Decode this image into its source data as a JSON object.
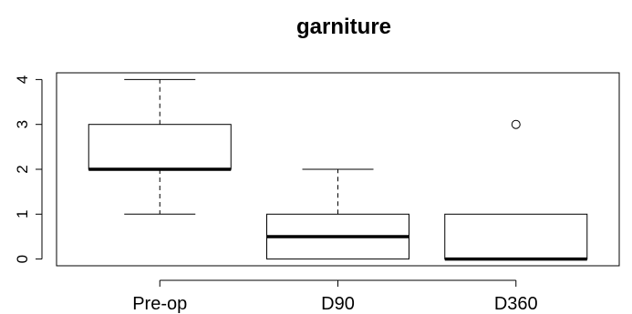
{
  "chart_data": {
    "type": "boxplot",
    "title": "garniture",
    "xlabel": "",
    "ylabel": "",
    "categories": [
      "Pre-op",
      "D90",
      "D360"
    ],
    "ylim": [
      -0.15,
      4.15
    ],
    "yticks": [
      0,
      1,
      2,
      3,
      4
    ],
    "ytick_labels": [
      "0",
      "1",
      "2",
      "3",
      "4"
    ],
    "grid": false,
    "boxes": [
      {
        "category": "Pre-op",
        "whisker_low": 1,
        "q1": 2,
        "median": 2,
        "q3": 3,
        "whisker_high": 4,
        "outliers": []
      },
      {
        "category": "D90",
        "whisker_low": 0,
        "q1": 0,
        "median": 0.5,
        "q3": 1,
        "whisker_high": 2,
        "outliers": []
      },
      {
        "category": "D360",
        "whisker_low": 0,
        "q1": 0,
        "median": 0,
        "q3": 1,
        "whisker_high": 1,
        "outliers": [
          3
        ]
      }
    ],
    "colors": {
      "box_fill": "#ffffff",
      "stroke": "#000000"
    }
  }
}
